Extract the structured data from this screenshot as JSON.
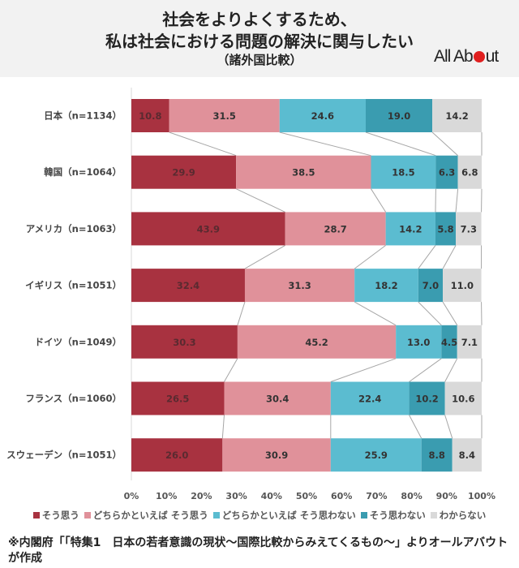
{
  "header": {
    "title_line1": "社会をよりよくするため、",
    "title_line2": "私は社会における問題の解決に関与したい",
    "subtitle": "（諸外国比較）",
    "logo_text_before": "All Ab",
    "logo_text_after": "ut"
  },
  "chart_data": {
    "type": "bar",
    "orientation": "horizontal-stacked-100",
    "title": "社会をよりよくするため、私は社会における問題の解決に関与したい（諸外国比較）",
    "xlabel": "",
    "ylabel": "",
    "xlim": [
      0,
      100
    ],
    "x_ticks": [
      "0%",
      "10%",
      "20%",
      "30%",
      "40%",
      "50%",
      "60%",
      "70%",
      "80%",
      "90%",
      "100%"
    ],
    "categories": [
      "日本（n=1134）",
      "韓国（n=1064）",
      "アメリカ（n=1063）",
      "イギリス（n=1051）",
      "ドイツ（n=1049）",
      "フランス（n=1060）",
      "スウェーデン（n=1051）"
    ],
    "series": [
      {
        "name": "そう思う",
        "color": "#a83240",
        "values": [
          10.8,
          29.9,
          43.9,
          32.4,
          30.3,
          26.5,
          26.0
        ]
      },
      {
        "name": "どちらかといえば そう思う",
        "color": "#e0919a",
        "values": [
          31.5,
          38.5,
          28.7,
          31.3,
          45.2,
          30.4,
          30.9
        ]
      },
      {
        "name": "どちらかといえば そう思わない",
        "color": "#5bbcd0",
        "values": [
          24.6,
          18.5,
          14.2,
          18.2,
          13.0,
          22.4,
          25.9
        ]
      },
      {
        "name": "そう思わない",
        "color": "#3a9cb0",
        "values": [
          19.0,
          6.3,
          5.8,
          7.0,
          4.5,
          10.2,
          8.8
        ]
      },
      {
        "name": "わからない",
        "color": "#d9d9d9",
        "values": [
          14.2,
          6.8,
          7.3,
          11.0,
          7.1,
          10.6,
          8.4
        ]
      }
    ],
    "series_lines": true,
    "legend_position": "bottom",
    "grid": false
  },
  "footnote": "※内閣府「「特集1　日本の若者意識の現状～国際比較からみえてくるもの～」よりオールアバウトが作成"
}
